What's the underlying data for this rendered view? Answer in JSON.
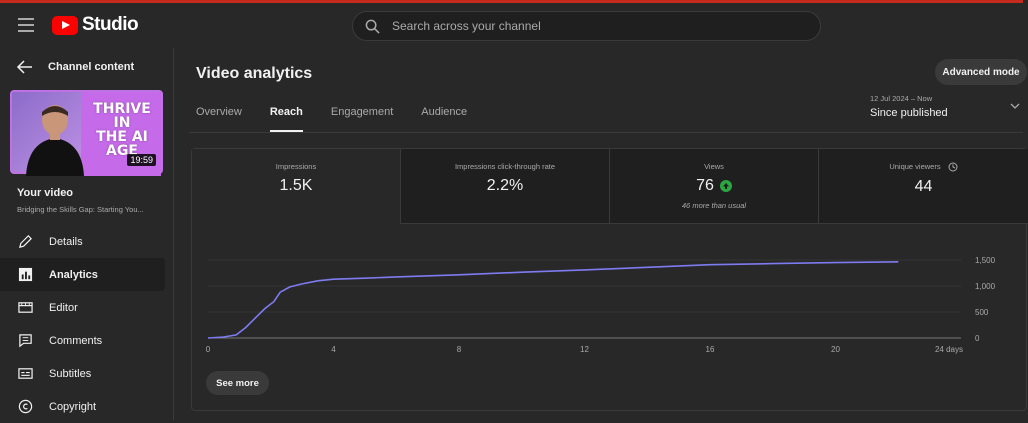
{
  "app": {
    "name": "Studio",
    "brand_color": "#ff0000"
  },
  "search": {
    "placeholder": "Search across your channel"
  },
  "sidebar": {
    "back_label": "Channel content",
    "thumbnail": {
      "overlay_text_line1": "THRIVE IN",
      "overlay_text_line2": "THE AI AGE",
      "duration": "19:59"
    },
    "your_video_label": "Your video",
    "video_title": "Bridging the Skills Gap: Starting You...",
    "items": [
      {
        "label": "Details",
        "icon": "pencil-icon"
      },
      {
        "label": "Analytics",
        "icon": "analytics-icon",
        "active": true
      },
      {
        "label": "Editor",
        "icon": "editor-icon"
      },
      {
        "label": "Comments",
        "icon": "comments-icon"
      },
      {
        "label": "Subtitles",
        "icon": "subtitles-icon"
      },
      {
        "label": "Copyright",
        "icon": "copyright-icon"
      }
    ]
  },
  "main": {
    "title": "Video analytics",
    "advanced_mode_label": "Advanced mode",
    "tabs": [
      {
        "label": "Overview"
      },
      {
        "label": "Reach",
        "active": true
      },
      {
        "label": "Engagement"
      },
      {
        "label": "Audience"
      }
    ],
    "date_range": {
      "dates": "12 Jul 2024 – Now",
      "label": "Since published"
    },
    "metrics": [
      {
        "label": "Impressions",
        "value": "1.5K",
        "selected": true
      },
      {
        "label": "Impressions click-through rate",
        "value": "2.2%"
      },
      {
        "label": "Views",
        "value": "76",
        "note": "46 more than usual",
        "trend": "up",
        "trend_color": "#2ba640"
      },
      {
        "label": "Unique viewers",
        "value": "44",
        "icon": "clock-icon"
      }
    ],
    "see_more_label": "See more"
  },
  "chart_data": {
    "type": "line",
    "title": "",
    "xlabel": "",
    "ylabel": "",
    "x_ticks": [
      "0",
      "4",
      "8",
      "12",
      "16",
      "20",
      "24 days"
    ],
    "y_ticks": [
      "0",
      "500",
      "1,000",
      "1,500"
    ],
    "xlim": [
      0,
      24
    ],
    "ylim": [
      0,
      1500
    ],
    "line_color": "#7e7bf0",
    "grid": true,
    "series": [
      {
        "x": [
          0,
          0.5,
          0.9,
          1.2,
          1.5,
          1.8,
          2.1,
          2.3,
          2.6,
          3.0,
          3.5,
          4,
          5,
          6,
          8,
          10,
          12,
          14,
          16,
          18,
          20,
          22
        ],
        "values": [
          0,
          20,
          60,
          200,
          380,
          560,
          700,
          880,
          980,
          1040,
          1100,
          1130,
          1150,
          1175,
          1215,
          1265,
          1310,
          1360,
          1410,
          1430,
          1450,
          1465
        ]
      }
    ]
  }
}
